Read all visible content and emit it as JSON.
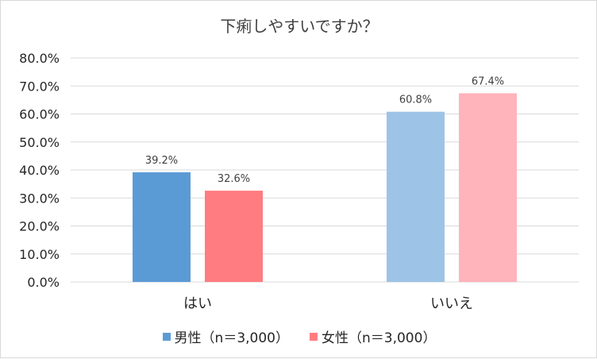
{
  "chart_data": {
    "type": "bar",
    "title": "下痢しやすいですか？",
    "categories": [
      "はい",
      "いいえ"
    ],
    "series": [
      {
        "name": "男性（n＝3,000）",
        "values": [
          39.2,
          60.8
        ],
        "colors": [
          "#5b9bd5",
          "#9dc3e6"
        ]
      },
      {
        "name": "女性（n＝3,000）",
        "values": [
          32.6,
          67.4
        ],
        "colors": [
          "#ff7c80",
          "#ffb3bb"
        ]
      }
    ],
    "data_labels": [
      [
        "39.2%",
        "60.8%"
      ],
      [
        "32.6%",
        "67.4%"
      ]
    ],
    "ylim": [
      0,
      80
    ],
    "yticks": [
      0,
      10,
      20,
      30,
      40,
      50,
      60,
      70,
      80
    ],
    "ytick_labels": [
      "0.0%",
      "10.0%",
      "20.0%",
      "30.0%",
      "40.0%",
      "50.0%",
      "60.0%",
      "70.0%",
      "80.0%"
    ],
    "grid": true,
    "legend": "bottom",
    "xlabel": "",
    "ylabel": ""
  }
}
